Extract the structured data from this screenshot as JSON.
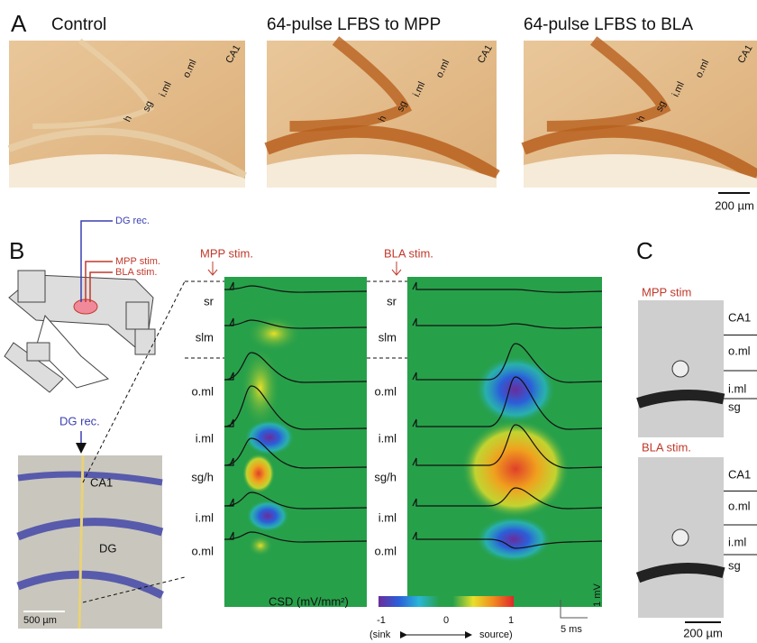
{
  "panel_a": {
    "letter": "A",
    "images": [
      {
        "title": "Control",
        "labels": [
          "CA1",
          "o.ml",
          "i.ml",
          "sg",
          "h"
        ]
      },
      {
        "title": "64-pulse LFBS to MPP",
        "labels": [
          "CA1",
          "o.ml",
          "i.ml",
          "sg",
          "h"
        ]
      },
      {
        "title": "64-pulse LFBS to BLA",
        "labels": [
          "CA1",
          "o.ml",
          "i.ml",
          "sg",
          "h"
        ]
      }
    ],
    "scale_bar": "200 µm"
  },
  "panel_b": {
    "letter": "B",
    "schematic": {
      "recording": "DG rec.",
      "mpp": "MPP stim.",
      "bla": "BLA stim."
    },
    "histology": {
      "recording": "DG rec.",
      "ca1": "CA1",
      "dg": "DG",
      "scale_bar": "500 µm"
    },
    "csd_panels": [
      {
        "title": "MPP stim.",
        "layers": [
          "sr",
          "slm",
          "o.ml",
          "i.ml",
          "sg/h",
          "i.ml",
          "o.ml"
        ]
      },
      {
        "title": "BLA stim.",
        "layers": [
          "sr",
          "slm",
          "o.ml",
          "i.ml",
          "sg/h",
          "i.ml",
          "o.ml"
        ]
      }
    ],
    "colorbar": {
      "label": "CSD (mV/mm²)",
      "ticks": [
        -1,
        0,
        1
      ],
      "sink": "(sink",
      "source": "source)"
    },
    "time_scale": "5 ms",
    "voltage_scale": "1 mV"
  },
  "panel_c": {
    "letter": "C",
    "images": [
      {
        "title": "MPP stim",
        "layers": [
          "CA1",
          "o.ml",
          "i.ml",
          "sg"
        ]
      },
      {
        "title": "BLA stim.",
        "layers": [
          "CA1",
          "o.ml",
          "i.ml",
          "sg"
        ]
      }
    ],
    "scale_bar": "200 µm"
  }
}
